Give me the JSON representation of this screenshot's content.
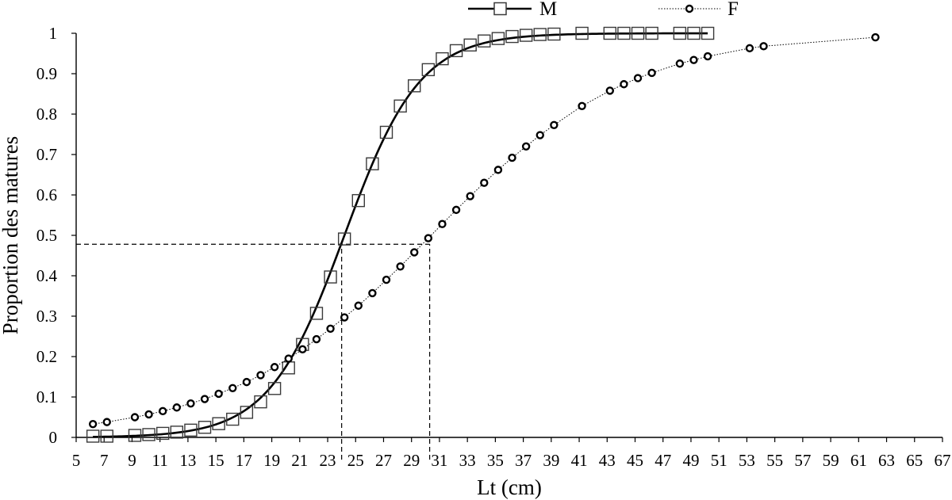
{
  "chart_data": {
    "type": "scatter",
    "title": "",
    "xlabel": "Lt (cm)",
    "ylabel": "Proportion des matures",
    "xlim": [
      5,
      67
    ],
    "ylim": [
      0,
      1
    ],
    "xticks": [
      5,
      7,
      9,
      11,
      13,
      15,
      17,
      19,
      21,
      23,
      25,
      27,
      29,
      31,
      33,
      35,
      37,
      39,
      41,
      43,
      45,
      47,
      49,
      51,
      53,
      55,
      57,
      59,
      61,
      63,
      65,
      67
    ],
    "yticks": [
      0,
      0.1,
      0.2,
      0.3,
      0.4,
      0.5,
      0.6,
      0.7,
      0.8,
      0.9,
      1
    ],
    "ytick_labels": [
      "0",
      "0.1",
      "0.2",
      "0.3",
      "0.4",
      "0.5",
      "0.6",
      "0.7",
      "0.8",
      "0.9",
      "1"
    ],
    "legend_position": "top-center",
    "series": [
      {
        "name": "M",
        "marker": "square",
        "line": "solid",
        "logistic_fit": {
          "L50": 24.2,
          "slope": 0.37
        },
        "x": [
          6.2,
          7.2,
          9.2,
          10.2,
          11.2,
          12.2,
          13.2,
          14.2,
          15.2,
          16.2,
          17.2,
          18.2,
          19.2,
          20.2,
          21.2,
          22.2,
          23.2,
          24.2,
          25.2,
          26.2,
          27.2,
          28.2,
          29.2,
          30.2,
          31.2,
          32.2,
          33.2,
          34.2,
          35.2,
          36.2,
          37.2,
          38.2,
          39.2,
          41.2,
          43.2,
          44.2,
          45.2,
          46.2,
          48.2,
          49.2,
          50.2
        ],
        "y": [
          0.003,
          0.003,
          0.005,
          0.007,
          0.01,
          0.013,
          0.018,
          0.025,
          0.034,
          0.045,
          0.062,
          0.088,
          0.121,
          0.172,
          0.23,
          0.307,
          0.397,
          0.491,
          0.586,
          0.677,
          0.755,
          0.82,
          0.87,
          0.91,
          0.937,
          0.957,
          0.971,
          0.981,
          0.987,
          0.992,
          0.995,
          0.997,
          0.998,
          1.0,
          1.0,
          1.0,
          1.0,
          1.0,
          1.0,
          1.0,
          1.0
        ]
      },
      {
        "name": "F",
        "marker": "circle",
        "line": "dotted",
        "x": [
          6.2,
          7.2,
          9.2,
          10.2,
          11.2,
          12.2,
          13.2,
          14.2,
          15.2,
          16.2,
          17.2,
          18.2,
          19.2,
          20.2,
          21.2,
          22.2,
          23.2,
          24.2,
          25.2,
          26.2,
          27.2,
          28.2,
          29.2,
          30.2,
          31.2,
          32.2,
          33.2,
          34.2,
          35.2,
          36.2,
          37.2,
          38.2,
          39.2,
          41.2,
          43.2,
          44.2,
          45.2,
          46.2,
          48.2,
          49.2,
          50.2,
          53.2,
          54.2,
          62.2
        ],
        "y": [
          0.033,
          0.038,
          0.05,
          0.057,
          0.065,
          0.074,
          0.084,
          0.095,
          0.108,
          0.122,
          0.137,
          0.154,
          0.174,
          0.195,
          0.218,
          0.243,
          0.269,
          0.297,
          0.326,
          0.357,
          0.39,
          0.423,
          0.458,
          0.493,
          0.528,
          0.563,
          0.597,
          0.63,
          0.662,
          0.692,
          0.72,
          0.748,
          0.773,
          0.82,
          0.858,
          0.874,
          0.889,
          0.902,
          0.925,
          0.934,
          0.943,
          0.963,
          0.968,
          0.99
        ]
      }
    ],
    "reference_lines": [
      {
        "type": "horizontal",
        "y": 0.478,
        "x_from": 5,
        "x_to": 30.3
      },
      {
        "type": "vertical",
        "x": 24.0,
        "y_from": 0,
        "y_to": 0.478
      },
      {
        "type": "vertical",
        "x": 30.3,
        "y_from": 0,
        "y_to": 0.478
      }
    ]
  }
}
